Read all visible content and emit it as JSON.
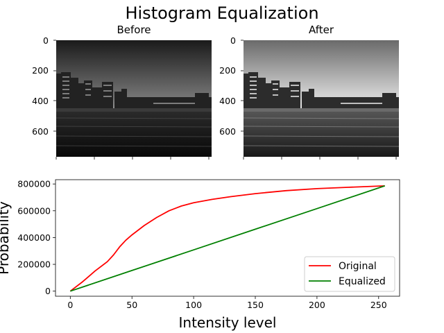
{
  "figure": {
    "title": "Histogram Equalization",
    "left_panel_title": "Before",
    "right_panel_title": "After",
    "image_yticks": [
      "0",
      "200",
      "400",
      "600"
    ]
  },
  "chart_data": {
    "type": "line",
    "xlabel": "Intensity level",
    "ylabel": "Probability",
    "xlim": [
      -12,
      267
    ],
    "ylim": [
      -38000,
      832000
    ],
    "xticks": [
      0,
      50,
      100,
      150,
      200,
      250
    ],
    "yticks": [
      0,
      200000,
      400000,
      600000,
      800000
    ],
    "ytick_labels": [
      "0",
      "200000",
      "400000",
      "600000",
      "800000"
    ],
    "legend": "lower-right",
    "grid": false,
    "series": [
      {
        "name": "Original",
        "color": "#ff0000",
        "x": [
          0,
          10,
          20,
          30,
          35,
          40,
          45,
          50,
          60,
          70,
          80,
          90,
          100,
          115,
          130,
          150,
          175,
          200,
          225,
          255
        ],
        "y": [
          0,
          70000,
          150000,
          220000,
          270000,
          330000,
          380000,
          420000,
          490000,
          550000,
          600000,
          635000,
          660000,
          685000,
          705000,
          728000,
          750000,
          765000,
          775000,
          786000
        ]
      },
      {
        "name": "Equalized",
        "color": "#008000",
        "x": [
          0,
          50,
          100,
          150,
          200,
          255
        ],
        "y": [
          0,
          154000,
          308000,
          462000,
          616000,
          786000
        ]
      }
    ]
  }
}
